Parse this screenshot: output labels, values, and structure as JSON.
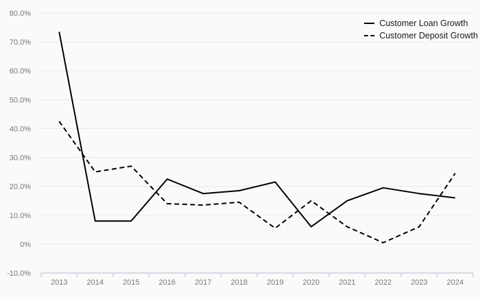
{
  "chart_data": {
    "type": "line",
    "title": "",
    "xlabel": "",
    "ylabel": "",
    "categories": [
      "2013",
      "2014",
      "2015",
      "2016",
      "2017",
      "2018",
      "2019",
      "2020",
      "2021",
      "2022",
      "2023",
      "2024"
    ],
    "series": [
      {
        "name": "Customer Loan Growth",
        "style": "solid",
        "values": [
          73.5,
          8,
          8,
          22.5,
          17.5,
          18.5,
          21.5,
          6,
          15,
          19.5,
          17.5,
          16
        ]
      },
      {
        "name": "Customer Deposit Growth",
        "style": "dashed",
        "values": [
          42.5,
          25,
          27,
          14,
          13.5,
          14.5,
          5.5,
          15,
          6,
          0.5,
          6,
          24.5
        ]
      }
    ],
    "ylim": [
      -10,
      80
    ],
    "y_ticks": [
      {
        "value": 80,
        "label": "80.0%"
      },
      {
        "value": 70,
        "label": "70.0%"
      },
      {
        "value": 60,
        "label": "60.0%"
      },
      {
        "value": 50,
        "label": "50.0%"
      },
      {
        "value": 40,
        "label": "40.0%"
      },
      {
        "value": 30,
        "label": "30.0%"
      },
      {
        "value": 20,
        "label": "20.0%"
      },
      {
        "value": 10,
        "label": "10.0%"
      },
      {
        "value": 0,
        "label": "0%"
      },
      {
        "value": -10,
        "label": "-10.0%"
      }
    ],
    "grid": "horizontal",
    "legend_position": "top-right",
    "colors": {
      "line": "#000000",
      "grid": "#e9e9ec",
      "axis": "#c9cfdb",
      "tick_label": "#74747e",
      "legend_text": "#1a1a1a",
      "background": "#fafafa"
    }
  }
}
